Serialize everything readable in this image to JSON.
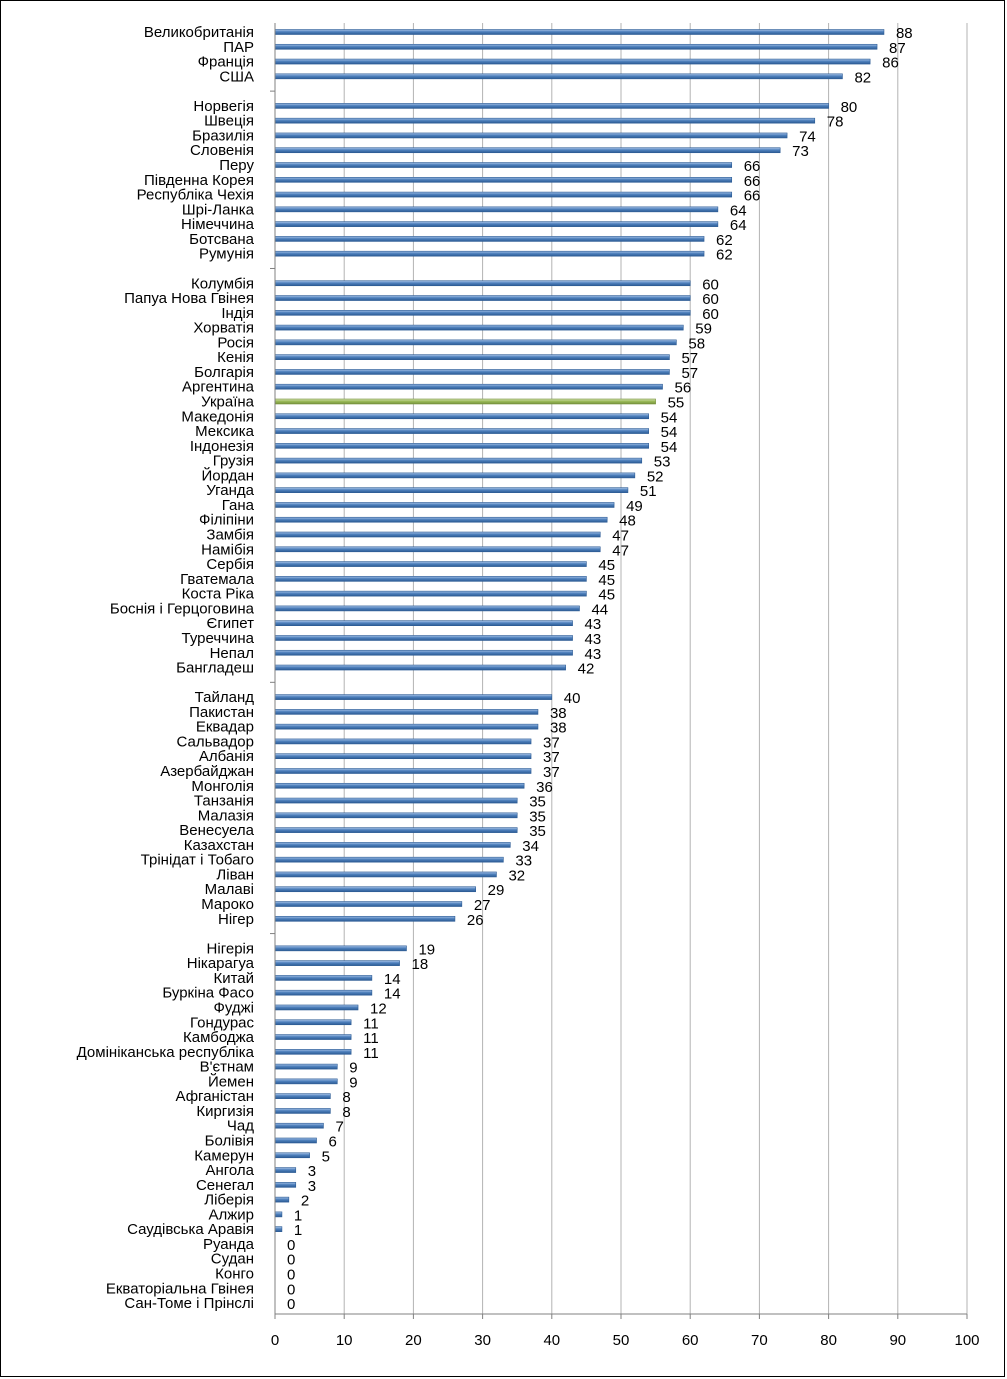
{
  "chart_data": {
    "type": "bar",
    "orientation": "horizontal",
    "title": "",
    "xlabel": "",
    "ylabel": "",
    "xlim": [
      0,
      100
    ],
    "xticks": [
      0,
      10,
      20,
      30,
      40,
      50,
      60,
      70,
      80,
      90,
      100
    ],
    "grid": "vertical",
    "legend": "none",
    "data_labels": true,
    "colors": {
      "bar": "#4f81bd",
      "bar_dark": "#2c5b94",
      "bar_highlight": "#9bbb59",
      "grid": "#b3b3b3",
      "axis": "#808080"
    },
    "groups": [
      {
        "items": [
          {
            "label": "Великобританія",
            "value": 88
          },
          {
            "label": "ПАР",
            "value": 87
          },
          {
            "label": "Франція",
            "value": 86
          },
          {
            "label": "США",
            "value": 82
          }
        ]
      },
      {
        "items": [
          {
            "label": "Норвегія",
            "value": 80
          },
          {
            "label": "Швеція",
            "value": 78
          },
          {
            "label": "Бразилія",
            "value": 74
          },
          {
            "label": "Словенія",
            "value": 73
          },
          {
            "label": "Перу",
            "value": 66
          },
          {
            "label": "Південна Корея",
            "value": 66
          },
          {
            "label": "Республіка Чехія",
            "value": 66
          },
          {
            "label": "Шрі-Ланка",
            "value": 64
          },
          {
            "label": "Німеччина",
            "value": 64
          },
          {
            "label": "Ботсвана",
            "value": 62
          },
          {
            "label": "Румунія",
            "value": 62
          }
        ]
      },
      {
        "items": [
          {
            "label": "Колумбія",
            "value": 60
          },
          {
            "label": "Папуа Нова Гвінея",
            "value": 60
          },
          {
            "label": "Індія",
            "value": 60
          },
          {
            "label": "Хорватія",
            "value": 59
          },
          {
            "label": "Росія",
            "value": 58
          },
          {
            "label": "Кенія",
            "value": 57
          },
          {
            "label": "Болгарія",
            "value": 57
          },
          {
            "label": "Аргентина",
            "value": 56
          },
          {
            "label": "Україна",
            "value": 55,
            "highlight": true
          },
          {
            "label": "Македонія",
            "value": 54
          },
          {
            "label": "Мексика",
            "value": 54
          },
          {
            "label": "Індонезія",
            "value": 54
          },
          {
            "label": "Грузія",
            "value": 53
          },
          {
            "label": "Йордан",
            "value": 52
          },
          {
            "label": "Уганда",
            "value": 51
          },
          {
            "label": "Гана",
            "value": 49
          },
          {
            "label": "Філіпіни",
            "value": 48
          },
          {
            "label": "Замбія",
            "value": 47
          },
          {
            "label": "Намібія",
            "value": 47
          },
          {
            "label": "Сербія",
            "value": 45
          },
          {
            "label": "Гватемала",
            "value": 45
          },
          {
            "label": "Коста Ріка",
            "value": 45
          },
          {
            "label": "Боснія і Герцоговина",
            "value": 44
          },
          {
            "label": "Єгипет",
            "value": 43
          },
          {
            "label": "Туреччина",
            "value": 43
          },
          {
            "label": "Непал",
            "value": 43
          },
          {
            "label": "Бангладеш",
            "value": 42
          }
        ]
      },
      {
        "items": [
          {
            "label": "Тайланд",
            "value": 40
          },
          {
            "label": "Пакистан",
            "value": 38
          },
          {
            "label": "Еквадар",
            "value": 38
          },
          {
            "label": "Сальвадор",
            "value": 37
          },
          {
            "label": "Албанія",
            "value": 37
          },
          {
            "label": "Азербайджан",
            "value": 37
          },
          {
            "label": "Монголія",
            "value": 36
          },
          {
            "label": "Танзанія",
            "value": 35
          },
          {
            "label": "Малазія",
            "value": 35
          },
          {
            "label": "Венесуела",
            "value": 35
          },
          {
            "label": "Казахстан",
            "value": 34
          },
          {
            "label": "Трінідат і Тобаго",
            "value": 33
          },
          {
            "label": "Ліван",
            "value": 32
          },
          {
            "label": "Малаві",
            "value": 29
          },
          {
            "label": "Мароко",
            "value": 27
          },
          {
            "label": "Нігер",
            "value": 26
          }
        ]
      },
      {
        "items": [
          {
            "label": "Нігерія",
            "value": 19
          },
          {
            "label": "Нікарагуа",
            "value": 18
          },
          {
            "label": "Китай",
            "value": 14
          },
          {
            "label": "Буркіна Фасо",
            "value": 14
          },
          {
            "label": "Фуджі",
            "value": 12
          },
          {
            "label": "Гондурас",
            "value": 11
          },
          {
            "label": "Камбоджа",
            "value": 11
          },
          {
            "label": "Домініканська республіка",
            "value": 11
          },
          {
            "label": "В'єтнам",
            "value": 9
          },
          {
            "label": "Йемен",
            "value": 9
          },
          {
            "label": "Афганістан",
            "value": 8
          },
          {
            "label": "Киргизія",
            "value": 8
          },
          {
            "label": "Чад",
            "value": 7
          },
          {
            "label": "Болівія",
            "value": 6
          },
          {
            "label": "Камерун",
            "value": 5
          },
          {
            "label": "Ангола",
            "value": 3
          },
          {
            "label": "Сенегал",
            "value": 3
          },
          {
            "label": "Ліберія",
            "value": 2
          },
          {
            "label": "Алжир",
            "value": 1
          },
          {
            "label": "Саудівська Аравія",
            "value": 1
          },
          {
            "label": "Руанда",
            "value": 0
          },
          {
            "label": "Судан",
            "value": 0
          },
          {
            "label": "Конго",
            "value": 0
          },
          {
            "label": "Екваторіальна Гвінея",
            "value": 0
          },
          {
            "label": "Сан-Томе і Прінслі",
            "value": 0
          }
        ]
      }
    ]
  }
}
